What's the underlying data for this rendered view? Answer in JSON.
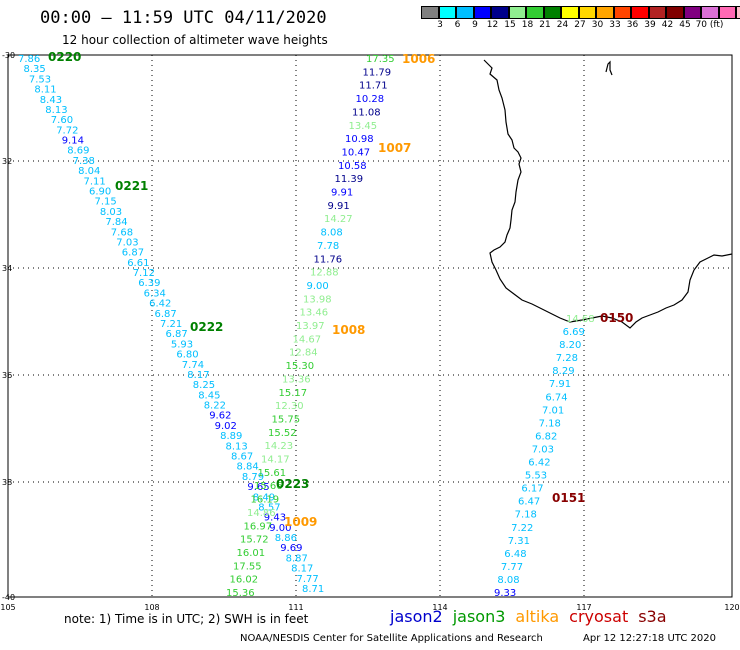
{
  "header": {
    "title": "00:00 – 11:59 UTC 04/11/2020",
    "subtitle": "12 hour collection of altimeter wave heights"
  },
  "legend": {
    "colors": [
      "#808080",
      "#00ffff",
      "#00bfff",
      "#0000ff",
      "#00008b",
      "#90ee90",
      "#32cd32",
      "#008000",
      "#ffff00",
      "#ffd700",
      "#ffa500",
      "#ff4500",
      "#ff0000",
      "#b22222",
      "#800000",
      "#800080",
      "#da70d6",
      "#ff69b4",
      "#ffc0cb",
      "#000000"
    ],
    "labels": [
      "3",
      "6",
      "9",
      "12",
      "15",
      "18",
      "21",
      "24",
      "27",
      "30",
      "33",
      "36",
      "39",
      "42",
      "45",
      "70 (ft)"
    ]
  },
  "axes": {
    "lat_labels": [
      "-30",
      "32",
      "34",
      "36",
      "38",
      "-40"
    ],
    "lon_labels": [
      "105",
      "108",
      "111",
      "114",
      "117",
      "120"
    ]
  },
  "footer": {
    "note": "note: 1) Time is in UTC; 2) SWH is in feet",
    "credit": "NOAA/NESDIS Center for Satellite Applications and Research",
    "timestamp": "Apr 12 12:27:18 UTC 2020"
  },
  "satellites": [
    {
      "name": "jason2",
      "color": "#0000cc"
    },
    {
      "name": "jason3",
      "color": "#009900"
    },
    {
      "name": "altika",
      "color": "#ff9900"
    },
    {
      "name": "cryosat",
      "color": "#cc0000"
    },
    {
      "name": "s3a",
      "color": "#880000"
    }
  ],
  "track_labels": [
    {
      "text": "0220",
      "color": "#008000"
    },
    {
      "text": "0221",
      "color": "#008000"
    },
    {
      "text": "0222",
      "color": "#008000"
    },
    {
      "text": "0223",
      "color": "#008000"
    },
    {
      "text": "1006",
      "color": "#ff9900"
    },
    {
      "text": "1007",
      "color": "#ff9900"
    },
    {
      "text": "1008",
      "color": "#ff9900"
    },
    {
      "text": "1009",
      "color": "#ff9900"
    },
    {
      "text": "0150",
      "color": "#880000"
    },
    {
      "text": "0151",
      "color": "#880000"
    }
  ],
  "track_a": [
    {
      "v": "7.86",
      "c": "#00bfff"
    },
    {
      "v": "8.35",
      "c": "#00bfff"
    },
    {
      "v": "7.53",
      "c": "#00bfff"
    },
    {
      "v": "8.11",
      "c": "#00bfff"
    },
    {
      "v": "8.43",
      "c": "#00bfff"
    },
    {
      "v": "8.13",
      "c": "#00bfff"
    },
    {
      "v": "7.60",
      "c": "#00bfff"
    },
    {
      "v": "7.72",
      "c": "#00bfff"
    },
    {
      "v": "9.14",
      "c": "#0000ff"
    },
    {
      "v": "8.69",
      "c": "#00bfff"
    },
    {
      "v": "7.38",
      "c": "#00bfff"
    },
    {
      "v": "8.04",
      "c": "#00bfff"
    },
    {
      "v": "7.11",
      "c": "#00bfff"
    },
    {
      "v": "6.90",
      "c": "#00bfff"
    },
    {
      "v": "7.15",
      "c": "#00bfff"
    },
    {
      "v": "8.03",
      "c": "#00bfff"
    },
    {
      "v": "7.84",
      "c": "#00bfff"
    },
    {
      "v": "7.68",
      "c": "#00bfff"
    },
    {
      "v": "7.03",
      "c": "#00bfff"
    },
    {
      "v": "6.87",
      "c": "#00bfff"
    },
    {
      "v": "6.61",
      "c": "#00bfff"
    },
    {
      "v": "7.12",
      "c": "#00bfff"
    },
    {
      "v": "6.39",
      "c": "#00bfff"
    },
    {
      "v": "6.34",
      "c": "#00bfff"
    },
    {
      "v": "6.42",
      "c": "#00bfff"
    },
    {
      "v": "6.87",
      "c": "#00bfff"
    },
    {
      "v": "7.21",
      "c": "#00bfff"
    },
    {
      "v": "6.87",
      "c": "#00bfff"
    },
    {
      "v": "5.93",
      "c": "#00bfff"
    },
    {
      "v": "6.80",
      "c": "#00bfff"
    },
    {
      "v": "7.74",
      "c": "#00bfff"
    },
    {
      "v": "8.17",
      "c": "#00bfff"
    },
    {
      "v": "8.25",
      "c": "#00bfff"
    },
    {
      "v": "8.45",
      "c": "#00bfff"
    },
    {
      "v": "8.22",
      "c": "#00bfff"
    },
    {
      "v": "9.62",
      "c": "#0000ff"
    },
    {
      "v": "9.02",
      "c": "#0000ff"
    },
    {
      "v": "8.89",
      "c": "#00bfff"
    },
    {
      "v": "8.13",
      "c": "#00bfff"
    },
    {
      "v": "8.67",
      "c": "#00bfff"
    },
    {
      "v": "8.84",
      "c": "#00bfff"
    },
    {
      "v": "8.79",
      "c": "#00bfff"
    },
    {
      "v": "9.65",
      "c": "#0000ff"
    },
    {
      "v": "8.49",
      "c": "#00bfff"
    },
    {
      "v": "8.57",
      "c": "#00bfff"
    },
    {
      "v": "9.43",
      "c": "#0000ff"
    },
    {
      "v": "9.00",
      "c": "#0000ff"
    },
    {
      "v": "8.86",
      "c": "#00bfff"
    },
    {
      "v": "9.69",
      "c": "#0000ff"
    },
    {
      "v": "8.87",
      "c": "#00bfff"
    },
    {
      "v": "8.17",
      "c": "#00bfff"
    },
    {
      "v": "7.77",
      "c": "#00bfff"
    },
    {
      "v": "8.71",
      "c": "#00bfff"
    }
  ],
  "track_b": [
    {
      "v": "17.35",
      "c": "#32cd32"
    },
    {
      "v": "11.79",
      "c": "#00008b"
    },
    {
      "v": "11.71",
      "c": "#00008b"
    },
    {
      "v": "10.28",
      "c": "#0000ff"
    },
    {
      "v": "11.08",
      "c": "#00008b"
    },
    {
      "v": "13.45",
      "c": "#90ee90"
    },
    {
      "v": "10.98",
      "c": "#0000ff"
    },
    {
      "v": "10.47",
      "c": "#0000ff"
    },
    {
      "v": "10.58",
      "c": "#0000ff"
    },
    {
      "v": "11.39",
      "c": "#00008b"
    },
    {
      "v": "9.91",
      "c": "#0000ff"
    },
    {
      "v": "9.91",
      "c": "#00008b"
    },
    {
      "v": "14.27",
      "c": "#90ee90"
    },
    {
      "v": "8.08",
      "c": "#00bfff"
    },
    {
      "v": "7.78",
      "c": "#00bfff"
    },
    {
      "v": "11.76",
      "c": "#00008b"
    },
    {
      "v": "12.88",
      "c": "#90ee90"
    },
    {
      "v": "9.00",
      "c": "#00bfff"
    },
    {
      "v": "13.98",
      "c": "#90ee90"
    },
    {
      "v": "13.46",
      "c": "#90ee90"
    },
    {
      "v": "13.97",
      "c": "#90ee90"
    },
    {
      "v": "14.67",
      "c": "#90ee90"
    },
    {
      "v": "12.84",
      "c": "#90ee90"
    },
    {
      "v": "15.30",
      "c": "#32cd32"
    },
    {
      "v": "13.36",
      "c": "#90ee90"
    },
    {
      "v": "15.17",
      "c": "#32cd32"
    },
    {
      "v": "12.30",
      "c": "#90ee90"
    },
    {
      "v": "15.75",
      "c": "#32cd32"
    },
    {
      "v": "15.52",
      "c": "#32cd32"
    },
    {
      "v": "14.23",
      "c": "#90ee90"
    },
    {
      "v": "14.17",
      "c": "#90ee90"
    },
    {
      "v": "15.61",
      "c": "#32cd32"
    },
    {
      "v": "15.66",
      "c": "#32cd32"
    },
    {
      "v": "16.19",
      "c": "#32cd32"
    },
    {
      "v": "14.86",
      "c": "#90ee90"
    },
    {
      "v": "16.97",
      "c": "#32cd32"
    },
    {
      "v": "15.72",
      "c": "#32cd32"
    },
    {
      "v": "16.01",
      "c": "#32cd32"
    },
    {
      "v": "17.55",
      "c": "#32cd32"
    },
    {
      "v": "16.02",
      "c": "#32cd32"
    },
    {
      "v": "15.36",
      "c": "#32cd32"
    }
  ],
  "track_c": [
    {
      "v": "14.68",
      "c": "#90ee90"
    },
    {
      "v": "6.69",
      "c": "#00bfff"
    },
    {
      "v": "8.20",
      "c": "#00bfff"
    },
    {
      "v": "7.28",
      "c": "#00bfff"
    },
    {
      "v": "8.29",
      "c": "#00bfff"
    },
    {
      "v": "7.91",
      "c": "#00bfff"
    },
    {
      "v": "6.74",
      "c": "#00bfff"
    },
    {
      "v": "7.01",
      "c": "#00bfff"
    },
    {
      "v": "7.18",
      "c": "#00bfff"
    },
    {
      "v": "6.82",
      "c": "#00bfff"
    },
    {
      "v": "7.03",
      "c": "#00bfff"
    },
    {
      "v": "6.42",
      "c": "#00bfff"
    },
    {
      "v": "5.53",
      "c": "#00bfff"
    },
    {
      "v": "6.17",
      "c": "#00bfff"
    },
    {
      "v": "6.47",
      "c": "#00bfff"
    },
    {
      "v": "7.18",
      "c": "#00bfff"
    },
    {
      "v": "7.22",
      "c": "#00bfff"
    },
    {
      "v": "7.31",
      "c": "#00bfff"
    },
    {
      "v": "6.48",
      "c": "#00bfff"
    },
    {
      "v": "7.77",
      "c": "#00bfff"
    },
    {
      "v": "8.08",
      "c": "#00bfff"
    },
    {
      "v": "9.33",
      "c": "#0000ff"
    }
  ]
}
